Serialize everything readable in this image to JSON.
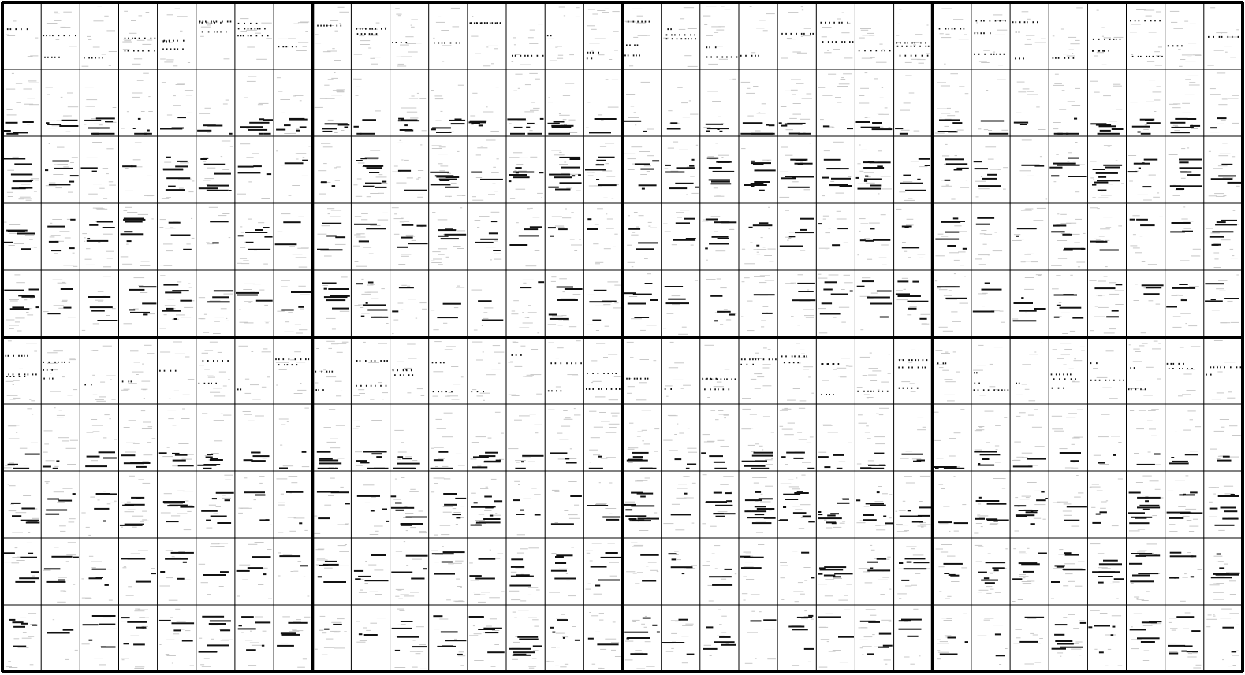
{
  "grid": {
    "block_rows": 2,
    "block_cols": 4,
    "rows_per_block": 5,
    "cols_per_block": 8,
    "row_bands": [
      "sparse-dots",
      "low-bars",
      "mid-dense-bars",
      "mid-bars",
      "lower-bars"
    ]
  },
  "colors": {
    "background": "#ffffff",
    "grid_line": "#000000",
    "mark_dark": "#111111",
    "mark_faint": "#c8c8c8"
  }
}
